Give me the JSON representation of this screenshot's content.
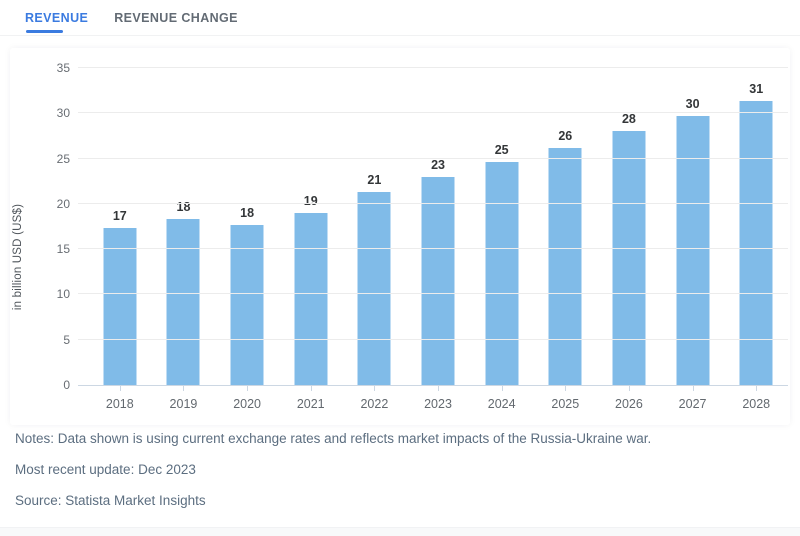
{
  "tabs": [
    {
      "label": "REVENUE",
      "active": true
    },
    {
      "label": "REVENUE CHANGE",
      "active": false
    }
  ],
  "chart_data": {
    "type": "bar",
    "title": "",
    "categories": [
      "2018",
      "2019",
      "2020",
      "2021",
      "2022",
      "2023",
      "2024",
      "2025",
      "2026",
      "2027",
      "2028"
    ],
    "values": [
      17,
      18,
      18,
      19,
      21,
      23,
      25,
      26,
      28,
      30,
      31
    ],
    "values_precise": [
      17.3,
      18.3,
      17.7,
      19.0,
      21.3,
      23.0,
      24.6,
      26.2,
      28.0,
      29.7,
      31.4
    ],
    "xlabel": "",
    "ylabel": "in billion USD (US$)",
    "yticks": [
      0,
      5,
      10,
      15,
      20,
      25,
      30,
      35
    ],
    "ylim": [
      0,
      35
    ],
    "grid": true,
    "legend": false,
    "bar_color": "#80bbe8",
    "value_label_color": "#333638",
    "axis_text_color": "#686d73"
  },
  "colors": {
    "accent_blue": "#3b7be0",
    "inactive_tab": "#636b74",
    "footer_text": "#5c6e80",
    "gridline": "#ececec",
    "axis_line": "#ccd7e3"
  },
  "footer": {
    "notes": "Notes: Data shown is using current exchange rates and reflects market impacts of the Russia-Ukraine war.",
    "update": "Most recent update: Dec 2023",
    "source": "Source: Statista Market Insights"
  }
}
